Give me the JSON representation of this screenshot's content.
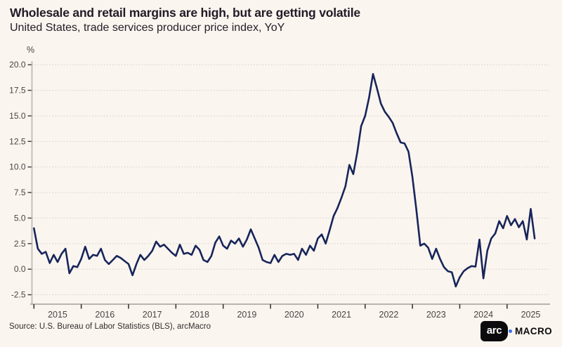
{
  "header": {
    "title": "Wholesale and retail margins are high, but are getting volatile",
    "subtitle": "United States, trade services producer price index, YoY"
  },
  "chart_data": {
    "type": "line",
    "title": "Wholesale and retail margins are high, but are getting volatile",
    "subtitle": "United States, trade services producer price index, YoY",
    "unit_label": "%",
    "ylim": [
      -2.5,
      20.0
    ],
    "grid": "horizontal-dotted",
    "y_tick_labels": [
      "20.0",
      "17.5",
      "15.0",
      "12.5",
      "10.0",
      "7.5",
      "5.0",
      "2.5",
      "0.0",
      "-2.5"
    ],
    "x_tick_labels": [
      "2015",
      "2016",
      "2017",
      "2018",
      "2019",
      "2020",
      "2021",
      "2022",
      "2023",
      "2024",
      "2025"
    ],
    "series": [
      {
        "name": "Trade services producer price index, YoY",
        "color": "#17255a",
        "frequency": "monthly",
        "start": "2015-01",
        "end": "2025-08",
        "values": [
          4.0,
          2.0,
          1.5,
          1.7,
          0.6,
          1.4,
          0.7,
          1.5,
          2.0,
          -0.4,
          0.3,
          0.2,
          1.0,
          2.2,
          1.0,
          1.4,
          1.3,
          2.0,
          0.9,
          0.5,
          0.9,
          1.3,
          1.1,
          0.8,
          0.5,
          -0.6,
          0.5,
          1.4,
          0.9,
          1.3,
          1.8,
          2.7,
          2.2,
          2.4,
          2.0,
          1.6,
          1.3,
          2.4,
          1.5,
          1.6,
          1.4,
          2.3,
          1.9,
          0.9,
          0.7,
          1.3,
          2.6,
          3.2,
          2.3,
          2.0,
          2.8,
          2.5,
          3.0,
          2.2,
          2.9,
          3.9,
          3.0,
          2.1,
          0.9,
          0.7,
          0.6,
          1.4,
          0.7,
          1.3,
          1.5,
          1.4,
          1.5,
          0.9,
          2.0,
          1.4,
          2.3,
          1.8,
          3.0,
          3.4,
          2.5,
          3.8,
          5.2,
          6.0,
          7.0,
          8.1,
          10.2,
          9.3,
          11.4,
          14.0,
          15.0,
          16.8,
          19.1,
          17.7,
          16.2,
          15.4,
          14.9,
          14.3,
          13.3,
          12.4,
          12.3,
          11.5,
          9.0,
          5.8,
          2.3,
          2.5,
          2.1,
          1.0,
          2.0,
          1.0,
          0.2,
          -0.2,
          -0.3,
          -1.7,
          -0.8,
          -0.2,
          0.1,
          0.3,
          0.25,
          2.9,
          -0.9,
          1.8,
          3.0,
          3.5,
          4.7,
          4.0,
          5.2,
          4.3,
          4.9,
          4.1,
          4.7,
          2.9,
          5.9,
          3.0
        ]
      }
    ],
    "legend": "none"
  },
  "footer": {
    "source": "Source: U.S. Bureau of Labor Statistics (BLS), arcMacro",
    "logo": {
      "box_text": "arc",
      "suffix": "MACRO",
      "dot_color": "#3b6cee"
    }
  },
  "colors": {
    "background": "#faf5ef",
    "line": "#17255a",
    "gridline": "#d2ccc6",
    "axis_spine": "#bab4ae",
    "tick_mark": "#3d3835",
    "tick_label": "#4b4544"
  }
}
